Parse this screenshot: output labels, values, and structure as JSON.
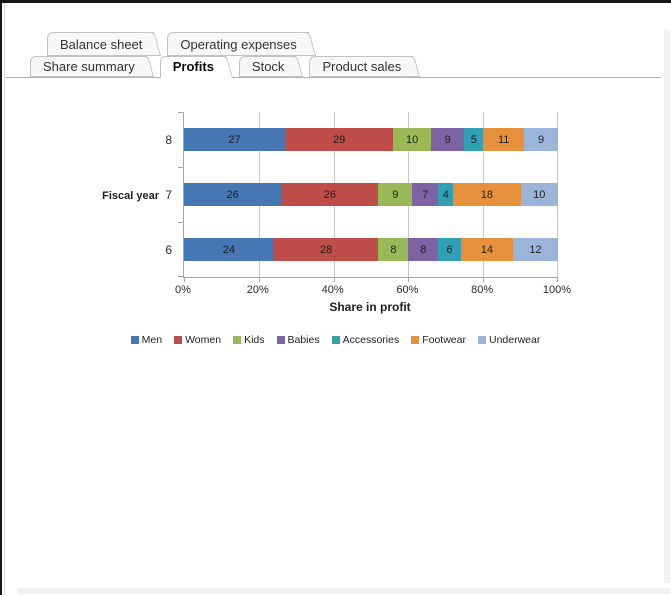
{
  "tabs": {
    "row1": [
      {
        "label": "Balance sheet",
        "active": false
      },
      {
        "label": "Operating expenses",
        "active": false
      }
    ],
    "row2": [
      {
        "label": "Share summary",
        "active": false
      },
      {
        "label": "Profits",
        "active": true
      },
      {
        "label": "Stock",
        "active": false
      },
      {
        "label": "Product sales",
        "active": false
      }
    ]
  },
  "chart_data": {
    "type": "bar",
    "orientation": "horizontal",
    "stacked": true,
    "title": "",
    "xlabel": "Share in profit",
    "ylabel": "Fiscal year",
    "categories": [
      "8",
      "7",
      "6"
    ],
    "series": [
      {
        "name": "Men",
        "color": "#4677B2",
        "values": [
          27,
          26,
          24
        ]
      },
      {
        "name": "Women",
        "color": "#BE4C48",
        "values": [
          29,
          26,
          28
        ]
      },
      {
        "name": "Kids",
        "color": "#99B959",
        "values": [
          10,
          9,
          8
        ]
      },
      {
        "name": "Babies",
        "color": "#7D63A1",
        "values": [
          9,
          7,
          8
        ]
      },
      {
        "name": "Accessories",
        "color": "#31A0B5",
        "values": [
          5,
          4,
          6
        ]
      },
      {
        "name": "Footwear",
        "color": "#E8913D",
        "values": [
          11,
          18,
          14
        ]
      },
      {
        "name": "Underwear",
        "color": "#9BB4D9",
        "values": [
          9,
          10,
          12
        ]
      }
    ],
    "x_ticks": [
      "0%",
      "20%",
      "40%",
      "60%",
      "80%",
      "100%"
    ],
    "x_tick_values": [
      0,
      20,
      40,
      60,
      80,
      100
    ],
    "xlim": [
      0,
      100
    ],
    "grid": true,
    "value_labels": true,
    "legend_position": "bottom"
  }
}
